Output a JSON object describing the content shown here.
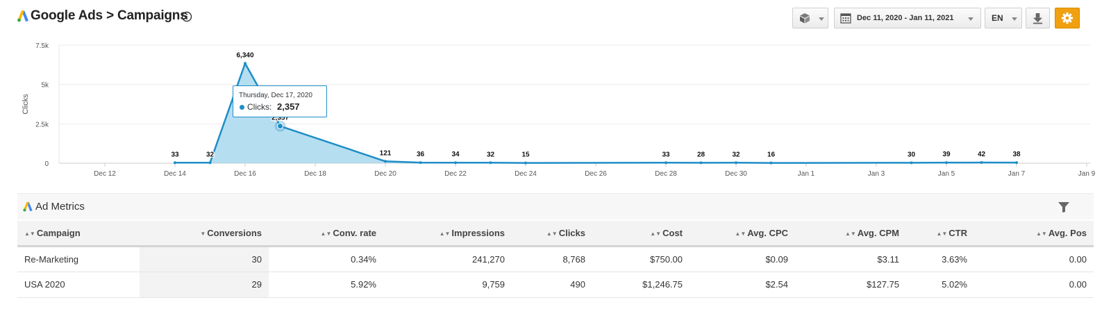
{
  "header": {
    "title": "Google Ads > Campaigns",
    "date_range": "Dec 11, 2020 - Jan 11, 2021",
    "language": "EN",
    "colors": {
      "logo_blue": "#4285f4",
      "logo_yellow": "#fbbc04",
      "logo_green": "#34a853",
      "settings_orange": "#f0a010"
    },
    "icons": [
      "google-ads-logo-icon",
      "info-icon",
      "cube-icon",
      "calendar-icon",
      "download-icon",
      "gear-icon"
    ]
  },
  "chart_data": {
    "type": "area",
    "x": [
      "Dec 14",
      "Dec 15",
      "Dec 16",
      "Dec 17",
      "Dec 20",
      "Dec 21",
      "Dec 22",
      "Dec 23",
      "Dec 24",
      "Dec 28",
      "Dec 29",
      "Dec 30",
      "Dec 31",
      "Jan 4",
      "Jan 5",
      "Jan 6",
      "Jan 7"
    ],
    "series": [
      {
        "values": [
          33,
          32,
          6340,
          2357,
          121,
          36,
          34,
          32,
          15,
          33,
          28,
          32,
          16,
          30,
          39,
          42,
          38
        ],
        "labels": [
          "33",
          "32",
          "6,340",
          "2,357",
          "121",
          "36",
          "34",
          "32",
          "15",
          "33",
          "28",
          "32",
          "16",
          "30",
          "39",
          "42",
          "38"
        ]
      }
    ],
    "ylabel": "Clicks",
    "ylim": [
      0,
      7500
    ],
    "y_ticks": [
      0,
      2500,
      5000,
      7500
    ],
    "y_tick_labels": [
      "0",
      "2.5k",
      "5k",
      "7.5k"
    ],
    "x_tick_labels": [
      "Dec 12",
      "Dec 14",
      "Dec 16",
      "Dec 18",
      "Dec 20",
      "Dec 22",
      "Dec 24",
      "Dec 26",
      "Dec 28",
      "Dec 30",
      "Jan 1",
      "Jan 3",
      "Jan 5",
      "Jan 7",
      "Jan 9"
    ],
    "grid": true,
    "line_color": "#1e8ec7",
    "fill_color": "#a9d8ee",
    "tooltip": {
      "date": "Thursday, Dec 17, 2020",
      "label": "Clicks:",
      "value": "2,357"
    }
  },
  "metrics": {
    "title": "Ad Metrics",
    "columns": [
      "Campaign",
      "Conversions",
      "Conv. rate",
      "Impressions",
      "Clicks",
      "Cost",
      "Avg. CPC",
      "Avg. CPM",
      "CTR",
      "Avg. Pos"
    ],
    "rows": [
      [
        "Re-Marketing",
        "30",
        "0.34%",
        "241,270",
        "8,768",
        "$750.00",
        "$0.09",
        "$3.11",
        "3.63%",
        "0.00"
      ],
      [
        "USA 2020",
        "29",
        "5.92%",
        "9,759",
        "490",
        "$1,246.75",
        "$2.54",
        "$127.75",
        "5.02%",
        "0.00"
      ]
    ]
  }
}
